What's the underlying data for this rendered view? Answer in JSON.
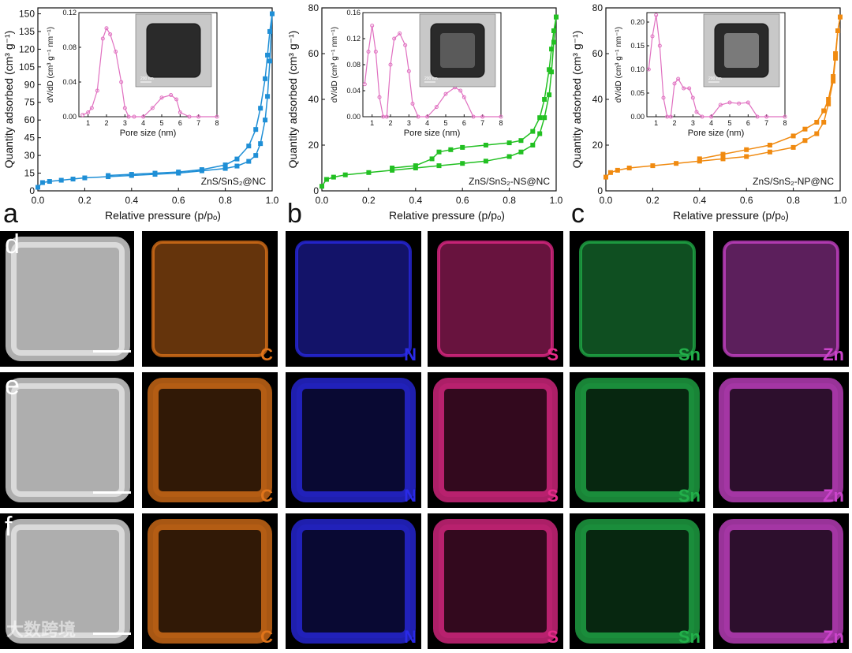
{
  "figure": {
    "panels_top": [
      {
        "letter": "a",
        "sample_label": "ZnS/SnS₂@NC",
        "color": "#1f8fd6",
        "main_y_ticks": [
          "0",
          "15",
          "30",
          "45",
          "60",
          "75",
          "90",
          "105",
          "120",
          "135",
          "150"
        ],
        "inset_y_ticks": [
          "0.00",
          "0.04",
          "0.08",
          "0.12"
        ],
        "inset_image_scale": "200 nm"
      },
      {
        "letter": "b",
        "sample_label": "ZnS/SnS₂-NS@NC",
        "color": "#22c022",
        "main_y_ticks": [
          "0",
          "20",
          "40",
          "60",
          "80"
        ],
        "inset_y_ticks": [
          "0.00",
          "0.04",
          "0.08",
          "0.12",
          "0.16"
        ],
        "inset_image_scale": "200 nm"
      },
      {
        "letter": "c",
        "sample_label": "ZnS/SnS₂-NP@NC",
        "color": "#f08a10",
        "main_y_ticks": [
          "0",
          "20",
          "40",
          "60",
          "80"
        ],
        "inset_y_ticks": [
          "0.00",
          "0.05",
          "0.10",
          "0.15",
          "0.20"
        ],
        "inset_image_scale": "200 nm"
      }
    ],
    "axes": {
      "main_xlabel": "Relative pressure (p/pₒ)",
      "main_ylabel": "Quantity adsorbed (cm³ g⁻¹)",
      "main_x_ticks": [
        "0.0",
        "0.2",
        "0.4",
        "0.6",
        "0.8",
        "1.0"
      ],
      "inset_xlabel": "Pore size (nm)",
      "inset_ylabel": "dV/dD (cm³ g⁻¹ nm⁻¹)",
      "inset_x_ticks": [
        "1",
        "2",
        "3",
        "4",
        "5",
        "6",
        "7",
        "8"
      ]
    },
    "mapping_rows": [
      {
        "letter": "d",
        "pattern": "filled"
      },
      {
        "letter": "e",
        "pattern": "ring"
      },
      {
        "letter": "f",
        "pattern": "ring"
      }
    ],
    "elements": [
      {
        "symbol": "C",
        "color": "#e0741a"
      },
      {
        "symbol": "N",
        "color": "#2a2ae8"
      },
      {
        "symbol": "S",
        "color": "#e62a8a"
      },
      {
        "symbol": "Sn",
        "color": "#22b04a"
      },
      {
        "symbol": "Zn",
        "color": "#cc44cc"
      }
    ],
    "watermark": "大数跨境"
  },
  "chart_data": [
    {
      "type": "line",
      "title": "",
      "xlabel": "Relative pressure (p/pₒ)",
      "ylabel": "Quantity adsorbed (cm³ g⁻¹)",
      "xlim": [
        0,
        1
      ],
      "ylim": [
        0,
        155
      ],
      "series": [
        {
          "name": "",
          "x": [
            0.0,
            0.02,
            0.05,
            0.1,
            0.15,
            0.2,
            0.3,
            0.4,
            0.5,
            0.6,
            0.7,
            0.8,
            0.85,
            0.9,
            0.93,
            0.95,
            0.97,
            0.98,
            0.99,
            1.0
          ],
          "y": [
            3,
            7,
            8,
            9,
            10,
            11,
            12,
            13,
            14,
            15,
            17,
            19,
            21,
            25,
            30,
            40,
            60,
            80,
            110,
            150
          ]
        },
        {
          "name": "",
          "x": [
            1.0,
            0.99,
            0.98,
            0.97,
            0.95,
            0.93,
            0.9,
            0.85,
            0.8,
            0.7,
            0.6,
            0.5,
            0.4,
            0.3
          ],
          "y": [
            150,
            135,
            115,
            95,
            70,
            52,
            38,
            27,
            22,
            18,
            16,
            15,
            14,
            13
          ]
        }
      ]
    },
    {
      "type": "line",
      "title": "",
      "xlabel": "Pore size (nm)",
      "ylabel": "dV/dD (cm³ g⁻¹ nm⁻¹)",
      "xlim": [
        0.5,
        8
      ],
      "ylim": [
        0,
        0.12
      ],
      "series": [
        {
          "name": "",
          "x": [
            0.7,
            1.0,
            1.2,
            1.5,
            1.8,
            2.0,
            2.2,
            2.5,
            2.8,
            3.0,
            3.2,
            3.5,
            4.0,
            4.5,
            5.0,
            5.5,
            5.8,
            6.0,
            6.5,
            7.0,
            8.0
          ],
          "y": [
            0.002,
            0.005,
            0.01,
            0.03,
            0.09,
            0.102,
            0.095,
            0.075,
            0.04,
            0.01,
            0.0,
            0.0,
            0.0,
            0.01,
            0.022,
            0.025,
            0.02,
            0.005,
            0.0,
            0.0,
            0.0
          ]
        }
      ]
    },
    {
      "type": "line",
      "title": "",
      "xlabel": "Relative pressure (p/pₒ)",
      "ylabel": "Quantity adsorbed (cm³ g⁻¹)",
      "xlim": [
        0,
        1
      ],
      "ylim": [
        0,
        80
      ],
      "series": [
        {
          "name": "",
          "x": [
            0.0,
            0.02,
            0.05,
            0.1,
            0.2,
            0.3,
            0.4,
            0.5,
            0.6,
            0.7,
            0.8,
            0.85,
            0.9,
            0.93,
            0.95,
            0.97,
            0.98,
            0.99,
            1.0
          ],
          "y": [
            2,
            5,
            6,
            7,
            8,
            9,
            10,
            11,
            12,
            13,
            15,
            17,
            20,
            25,
            32,
            42,
            52,
            65,
            76
          ]
        },
        {
          "name": "",
          "x": [
            1.0,
            0.99,
            0.98,
            0.97,
            0.95,
            0.93,
            0.9,
            0.85,
            0.8,
            0.7,
            0.6,
            0.55,
            0.5,
            0.47,
            0.4,
            0.3
          ],
          "y": [
            76,
            70,
            62,
            53,
            40,
            32,
            26,
            22,
            21,
            20,
            19,
            18,
            17,
            14,
            11,
            10
          ]
        }
      ]
    },
    {
      "type": "line",
      "title": "",
      "xlabel": "Pore size (nm)",
      "ylabel": "dV/dD (cm³ g⁻¹ nm⁻¹)",
      "xlim": [
        0.5,
        8
      ],
      "ylim": [
        0,
        0.16
      ],
      "series": [
        {
          "name": "",
          "x": [
            0.6,
            0.8,
            1.0,
            1.2,
            1.4,
            1.6,
            1.8,
            2.0,
            2.2,
            2.5,
            2.8,
            3.0,
            3.2,
            3.5,
            4.0,
            4.5,
            5.0,
            5.5,
            5.8,
            6.0,
            6.5,
            7.0,
            8.0
          ],
          "y": [
            0.05,
            0.1,
            0.14,
            0.1,
            0.03,
            0.0,
            0.0,
            0.08,
            0.12,
            0.128,
            0.11,
            0.07,
            0.02,
            0.0,
            0.0,
            0.015,
            0.035,
            0.045,
            0.04,
            0.03,
            0.0,
            0.0,
            0.0
          ]
        }
      ]
    },
    {
      "type": "line",
      "title": "",
      "xlabel": "Relative pressure (p/pₒ)",
      "ylabel": "Quantity adsorbed (cm³ g⁻¹)",
      "xlim": [
        0,
        1
      ],
      "ylim": [
        0,
        80
      ],
      "series": [
        {
          "name": "",
          "x": [
            0.0,
            0.02,
            0.05,
            0.1,
            0.2,
            0.3,
            0.4,
            0.5,
            0.6,
            0.7,
            0.8,
            0.85,
            0.9,
            0.93,
            0.95,
            0.97,
            0.98,
            0.99,
            1.0
          ],
          "y": [
            6,
            8,
            9,
            10,
            11,
            12,
            13,
            14,
            15,
            17,
            19,
            22,
            25,
            30,
            38,
            48,
            58,
            70,
            76
          ]
        },
        {
          "name": "",
          "x": [
            1.0,
            0.99,
            0.98,
            0.97,
            0.95,
            0.93,
            0.9,
            0.85,
            0.8,
            0.7,
            0.6,
            0.5,
            0.4
          ],
          "y": [
            76,
            70,
            60,
            50,
            40,
            35,
            30,
            27,
            24,
            20,
            18,
            16,
            14
          ]
        }
      ]
    },
    {
      "type": "line",
      "title": "",
      "xlabel": "Pore size (nm)",
      "ylabel": "dV/dD (cm³ g⁻¹ nm⁻¹)",
      "xlim": [
        0.5,
        8
      ],
      "ylim": [
        0,
        0.22
      ],
      "series": [
        {
          "name": "",
          "x": [
            0.6,
            0.8,
            1.0,
            1.2,
            1.4,
            1.6,
            1.8,
            2.0,
            2.2,
            2.5,
            2.8,
            3.0,
            3.2,
            3.5,
            4.0,
            4.5,
            5.0,
            5.5,
            6.0,
            6.5,
            7.0,
            8.0
          ],
          "y": [
            0.1,
            0.17,
            0.215,
            0.15,
            0.04,
            0.0,
            0.0,
            0.07,
            0.08,
            0.06,
            0.06,
            0.04,
            0.01,
            0.0,
            0.0,
            0.025,
            0.03,
            0.028,
            0.03,
            0.0,
            0.0,
            0.0
          ]
        }
      ]
    }
  ]
}
